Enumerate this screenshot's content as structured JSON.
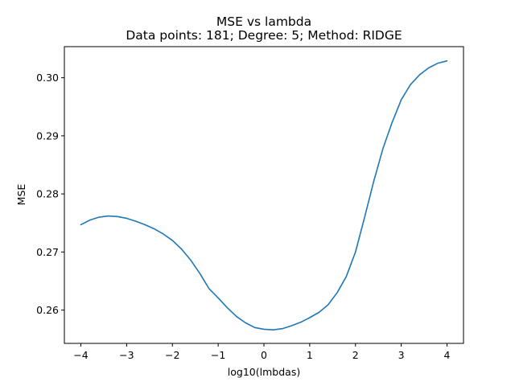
{
  "chart_data": {
    "type": "line",
    "title": "MSE vs lambda",
    "subtitle": "Data points: 181; Degree: 5; Method: RIDGE",
    "xlabel": "log10(lmbdas)",
    "ylabel": "MSE",
    "xlim": [
      -4.36,
      4.36
    ],
    "ylim": [
      0.25427,
      0.30535
    ],
    "x_ticks": [
      -4,
      -3,
      -2,
      -1,
      0,
      1,
      2,
      3,
      4
    ],
    "x_tick_labels": [
      "−4",
      "−3",
      "−2",
      "−1",
      "0",
      "1",
      "2",
      "3",
      "4"
    ],
    "y_ticks": [
      0.26,
      0.27,
      0.28,
      0.29,
      0.3
    ],
    "y_tick_labels": [
      "0.26",
      "0.27",
      "0.28",
      "0.29",
      "0.30"
    ],
    "grid": false,
    "series": [
      {
        "color": "#1f77b4",
        "x": [
          -4.0,
          -3.8,
          -3.6,
          -3.4,
          -3.2,
          -3.0,
          -2.8,
          -2.6,
          -2.4,
          -2.2,
          -2.0,
          -1.8,
          -1.6,
          -1.4,
          -1.2,
          -1.0,
          -0.8,
          -0.6,
          -0.4,
          -0.2,
          0.0,
          0.2,
          0.4,
          0.6,
          0.8,
          1.0,
          1.2,
          1.4,
          1.6,
          1.8,
          2.0,
          2.2,
          2.4,
          2.6,
          2.8,
          3.0,
          3.2,
          3.4,
          3.6,
          3.8,
          4.0
        ],
        "y": [
          0.2747,
          0.2755,
          0.276,
          0.2762,
          0.2761,
          0.2758,
          0.2753,
          0.2747,
          0.274,
          0.2731,
          0.272,
          0.2705,
          0.2686,
          0.2663,
          0.2637,
          0.2621,
          0.2604,
          0.2589,
          0.2578,
          0.257,
          0.2567,
          0.2566,
          0.2568,
          0.2573,
          0.2579,
          0.2587,
          0.2596,
          0.2609,
          0.263,
          0.2658,
          0.27,
          0.276,
          0.2822,
          0.2878,
          0.2923,
          0.2962,
          0.2988,
          0.3005,
          0.3017,
          0.3025,
          0.3029
        ]
      }
    ]
  }
}
